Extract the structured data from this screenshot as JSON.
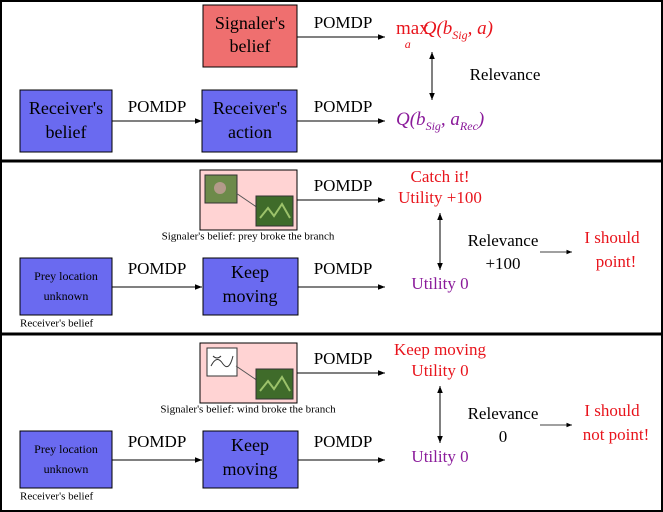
{
  "panel1": {
    "signaler_belief": [
      "Signaler's",
      "belief"
    ],
    "receiver_belief": [
      "Receiver's",
      "belief"
    ],
    "receiver_action": [
      "Receiver's",
      "action"
    ],
    "pomdp_labels": [
      "POMDP",
      "POMDP",
      "POMDP"
    ],
    "max_q": {
      "op": "max",
      "op_sub": "a",
      "q": "Q(b",
      "q_sub": "Sig",
      "q_end": ", a)"
    },
    "rec_q": {
      "q": "Q(b",
      "q_sub": "Sig",
      "mid": ", a",
      "mid_sub": "Rec",
      "end": ")"
    },
    "relevance": "Relevance"
  },
  "panels": [
    {
      "signaler_caption": "Signaler's belief: prey broke the branch",
      "pomdp_labels": [
        "POMDP",
        "POMDP",
        "POMDP"
      ],
      "signaler_outcome": [
        "Catch it!",
        "Utility +100"
      ],
      "relevance": [
        "Relevance",
        "+100"
      ],
      "conclusion": [
        "I should",
        "point!"
      ],
      "receiver_belief": [
        "Prey location",
        "unknown"
      ],
      "receiver_caption": "Receiver's belief",
      "receiver_action": [
        "Keep",
        "moving"
      ],
      "receiver_outcome": "Utility 0"
    },
    {
      "signaler_caption": "Signaler's belief: wind broke the branch",
      "pomdp_labels": [
        "POMDP",
        "POMDP",
        "POMDP"
      ],
      "signaler_outcome": [
        "Keep moving",
        "Utility 0"
      ],
      "relevance": [
        "Relevance",
        "0"
      ],
      "conclusion": [
        "I should",
        "not point!"
      ],
      "receiver_belief": [
        "Prey location",
        "unknown"
      ],
      "receiver_caption": "Receiver's belief",
      "receiver_action": [
        "Keep",
        "moving"
      ],
      "receiver_outcome": "Utility 0"
    }
  ]
}
